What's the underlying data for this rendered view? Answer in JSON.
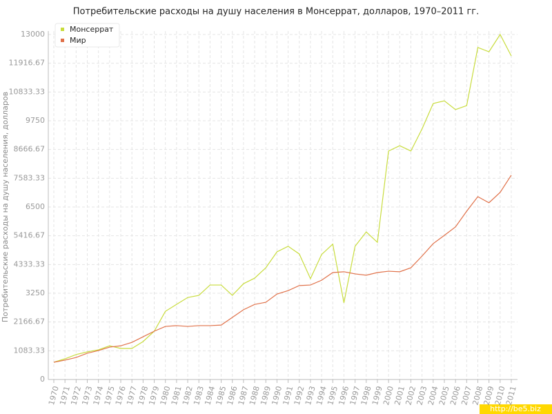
{
  "chart_data": {
    "type": "line",
    "title": "Потребительские расходы на душу населения в Монсеррат, долларов, 1970–2011 гг.",
    "y_label": "Потребительские расходы на душу населения, долларов",
    "watermark": "http://be5.biz",
    "categories": [
      "1970",
      "1971",
      "1972",
      "1973",
      "1974",
      "1975",
      "1976",
      "1977",
      "1978",
      "1979",
      "1980",
      "1981",
      "1982",
      "1983",
      "1984",
      "1985",
      "1986",
      "1987",
      "1988",
      "1989",
      "1990",
      "1991",
      "1992",
      "1993",
      "1994",
      "1995",
      "1996",
      "1997",
      "1998",
      "1999",
      "2000",
      "2001",
      "2002",
      "2003",
      "2004",
      "2005",
      "2006",
      "2007",
      "2008",
      "2009",
      "2010",
      "2011"
    ],
    "series": [
      {
        "name": "Монсеррат",
        "color": "#c8dc3c",
        "values": [
          650,
          780,
          940,
          1040,
          1120,
          1270,
          1170,
          1170,
          1430,
          1820,
          2570,
          2830,
          3090,
          3170,
          3560,
          3560,
          3170,
          3610,
          3820,
          4210,
          4810,
          5020,
          4730,
          3800,
          4710,
          5100,
          2890,
          5020,
          5560,
          5170,
          8610,
          8810,
          8610,
          9440,
          10400,
          10500,
          10170,
          10320,
          12510,
          12350,
          13000,
          12190
        ]
      },
      {
        "name": "Мир",
        "color": "#e07048",
        "values": [
          650,
          730,
          830,
          990,
          1090,
          1220,
          1270,
          1400,
          1610,
          1820,
          2000,
          2030,
          2000,
          2030,
          2030,
          2050,
          2340,
          2630,
          2830,
          2910,
          3220,
          3350,
          3540,
          3560,
          3740,
          4030,
          4060,
          3980,
          3930,
          4030,
          4080,
          4060,
          4210,
          4650,
          5120,
          5430,
          5750,
          6340,
          6890,
          6660,
          7050,
          7700
        ]
      }
    ],
    "ylim": [
      0,
      13000
    ],
    "yticks": [
      0,
      1083.33,
      2166.67,
      3250,
      4333.33,
      5416.67,
      6500,
      7583.33,
      8666.67,
      9750,
      10833.33,
      11916.67,
      13000
    ],
    "grid": true,
    "legend": "top-left"
  }
}
